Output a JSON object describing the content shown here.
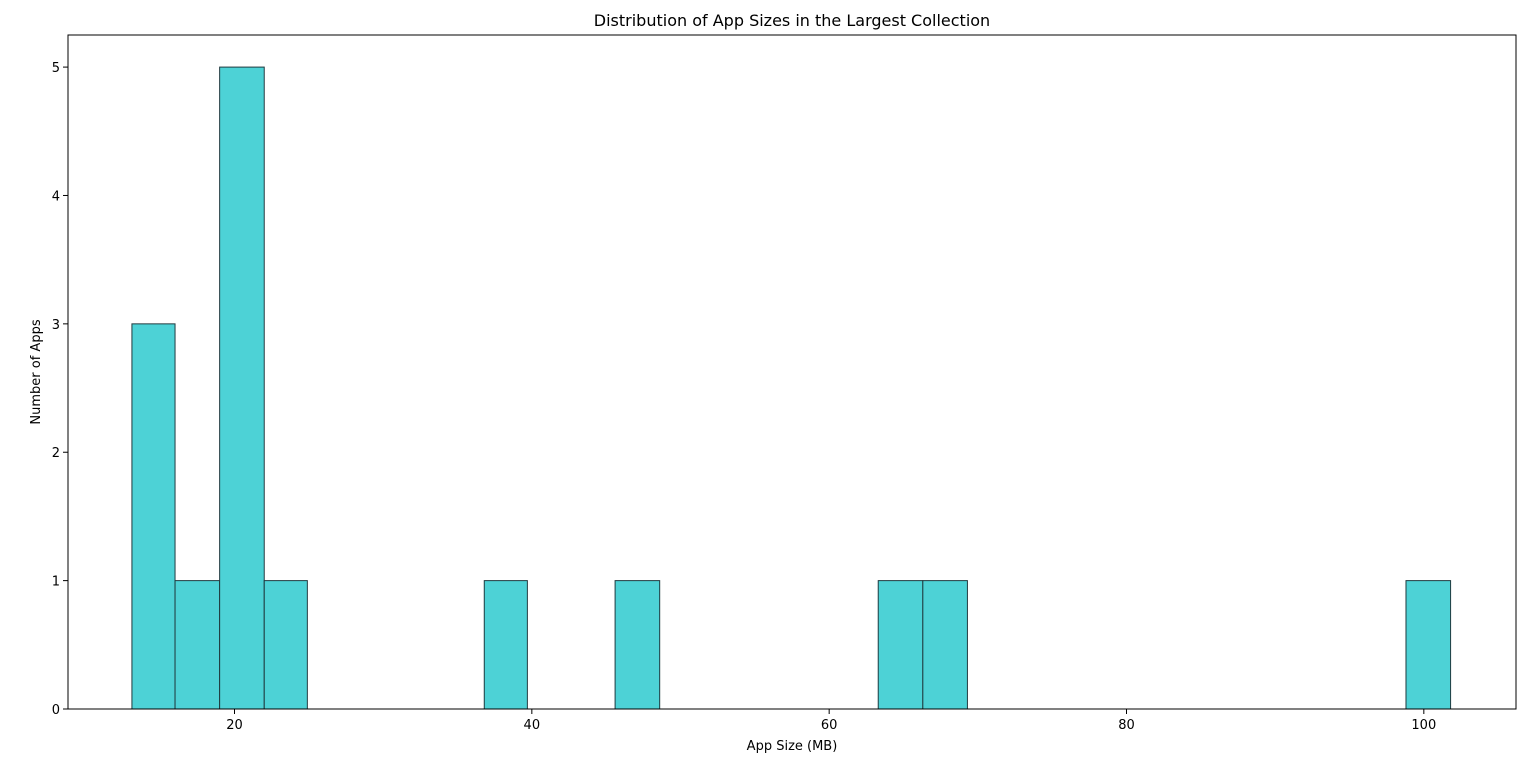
{
  "chart_data": {
    "type": "bar",
    "title": "Distribution of App Sizes in the Largest Collection",
    "xlabel": "App Size (MB)",
    "ylabel": "Number of Apps",
    "xlim": [
      8.8,
      106.2
    ],
    "ylim": [
      0,
      5.25
    ],
    "xticks": [
      20,
      40,
      60,
      80,
      100
    ],
    "yticks": [
      0,
      1,
      2,
      3,
      4,
      5
    ],
    "grid": false,
    "bins": [
      {
        "start": 13.1,
        "end": 16.0,
        "count": 3
      },
      {
        "start": 16.0,
        "end": 19.0,
        "count": 1
      },
      {
        "start": 19.0,
        "end": 22.0,
        "count": 5
      },
      {
        "start": 22.0,
        "end": 24.9,
        "count": 1
      },
      {
        "start": 36.8,
        "end": 39.7,
        "count": 1
      },
      {
        "start": 45.6,
        "end": 48.6,
        "count": 1
      },
      {
        "start": 63.3,
        "end": 66.3,
        "count": 1
      },
      {
        "start": 66.3,
        "end": 69.3,
        "count": 1
      },
      {
        "start": 98.8,
        "end": 101.8,
        "count": 1
      }
    ],
    "colors": {
      "fill": "#4dd2d6",
      "edge": "#1f3a3f",
      "axis": "#000000"
    }
  }
}
